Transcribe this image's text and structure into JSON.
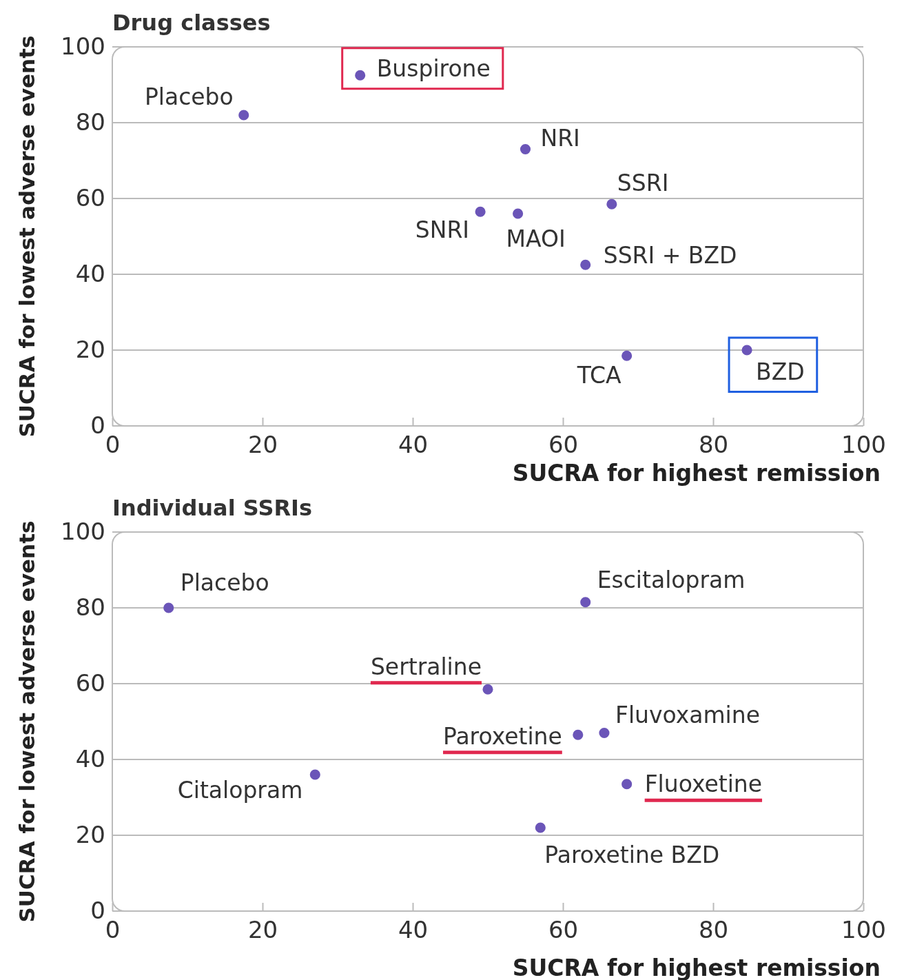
{
  "chart_data": [
    {
      "type": "scatter",
      "title": "Drug classes",
      "xlabel": "SUCRA for highest remission",
      "ylabel": "SUCRA for lowest adverse events",
      "xlim": [
        0,
        100
      ],
      "ylim": [
        0,
        100
      ],
      "xticks": [
        0,
        20,
        40,
        60,
        80,
        100
      ],
      "yticks": [
        0,
        20,
        40,
        60,
        80,
        100
      ],
      "grid": "y",
      "marker": "circle",
      "series": [
        {
          "name": "Placebo",
          "color": "#6b55b8",
          "x": [
            17.5
          ],
          "values": [
            82
          ]
        },
        {
          "name": "Buspirone",
          "color": "#6b55b8",
          "x": [
            33
          ],
          "values": [
            92.5
          ]
        },
        {
          "name": "NRI",
          "color": "#6b55b8",
          "x": [
            55
          ],
          "values": [
            73
          ]
        },
        {
          "name": "SSRI",
          "color": "#6b55b8",
          "x": [
            66.5
          ],
          "values": [
            58.5
          ]
        },
        {
          "name": "SNRI",
          "color": "#6b55b8",
          "x": [
            49
          ],
          "values": [
            56.5
          ]
        },
        {
          "name": "MAOI",
          "color": "#6b55b8",
          "x": [
            54
          ],
          "values": [
            56
          ]
        },
        {
          "name": "SSRI + BZD",
          "color": "#6b55b8",
          "x": [
            63
          ],
          "values": [
            42.5
          ]
        },
        {
          "name": "TCA",
          "color": "#6b55b8",
          "x": [
            68.5
          ],
          "values": [
            18.5
          ]
        },
        {
          "name": "BZD",
          "color": "#6b55b8",
          "x": [
            84.5
          ],
          "values": [
            20
          ]
        }
      ]
    },
    {
      "type": "scatter",
      "title": "Individual SSRIs",
      "xlabel": "SUCRA for highest remission",
      "ylabel": "SUCRA for lowest adverse events",
      "xlim": [
        0,
        100
      ],
      "ylim": [
        0,
        100
      ],
      "xticks": [
        0,
        20,
        40,
        60,
        80,
        100
      ],
      "yticks": [
        0,
        20,
        40,
        60,
        80,
        100
      ],
      "grid": "y",
      "marker": "circle",
      "series": [
        {
          "name": "Placebo",
          "color": "#6b55b8",
          "x": [
            7.5
          ],
          "values": [
            80
          ]
        },
        {
          "name": "Escitalopram",
          "color": "#6b55b8",
          "x": [
            63
          ],
          "values": [
            81.5
          ]
        },
        {
          "name": "Sertraline",
          "color": "#6b55b8",
          "x": [
            50
          ],
          "values": [
            58.5
          ]
        },
        {
          "name": "Paroxetine",
          "color": "#6b55b8",
          "x": [
            62
          ],
          "values": [
            46.5
          ]
        },
        {
          "name": "Fluvoxamine",
          "color": "#6b55b8",
          "x": [
            65.5
          ],
          "values": [
            47
          ]
        },
        {
          "name": "Citalopram",
          "color": "#6b55b8",
          "x": [
            27
          ],
          "values": [
            36
          ]
        },
        {
          "name": "Fluoxetine",
          "color": "#6b55b8",
          "x": [
            68.5
          ],
          "values": [
            33.5
          ]
        },
        {
          "name": "Paroxetine BZD",
          "color": "#6b55b8",
          "x": [
            57
          ],
          "values": [
            22
          ]
        }
      ]
    }
  ]
}
